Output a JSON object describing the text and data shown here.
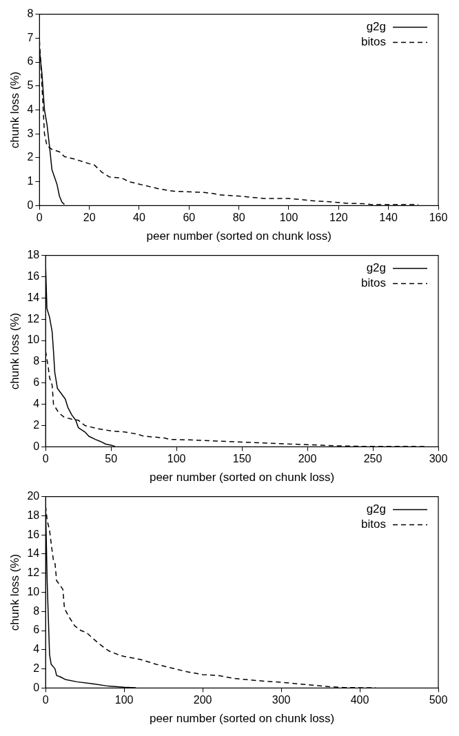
{
  "chart_data": [
    {
      "type": "line",
      "xlabel": "peer number (sorted on chunk loss)",
      "ylabel": "chunk loss (%)",
      "xlim": [
        0,
        160
      ],
      "xticks": [
        0,
        20,
        40,
        60,
        80,
        100,
        120,
        140,
        160
      ],
      "ylim": [
        0,
        8
      ],
      "yticks": [
        0,
        1,
        2,
        3,
        4,
        5,
        6,
        7,
        8
      ],
      "grid": false,
      "legend": "top right",
      "marker": "none",
      "series": [
        {
          "name": "g2g",
          "color": "#000000",
          "line_style": "solid",
          "x": [
            0,
            1,
            2,
            3,
            4,
            5,
            6,
            7,
            8,
            9,
            10
          ],
          "values": [
            6.5,
            5.5,
            4,
            3.4,
            2.5,
            1.5,
            1.2,
            0.9,
            0.4,
            0.15,
            0.05
          ]
        },
        {
          "name": "bitos",
          "color": "#000000",
          "line_style": "dashed",
          "x": [
            0,
            1,
            2,
            3,
            5,
            8,
            10,
            14,
            20,
            22,
            25,
            28,
            33,
            36,
            40,
            44,
            48,
            54,
            66,
            70,
            72,
            80,
            85,
            90,
            100,
            105,
            110,
            118,
            123,
            130,
            133,
            152
          ],
          "values": [
            6.9,
            5,
            3,
            2.5,
            2.35,
            2.25,
            2.05,
            1.95,
            1.75,
            1.7,
            1.4,
            1.2,
            1.15,
            1,
            0.9,
            0.8,
            0.7,
            0.6,
            0.55,
            0.5,
            0.45,
            0.4,
            0.35,
            0.3,
            0.3,
            0.25,
            0.2,
            0.15,
            0.1,
            0.08,
            0.05,
            0.05
          ]
        }
      ]
    },
    {
      "type": "line",
      "xlabel": "peer number (sorted on chunk loss)",
      "ylabel": "chunk loss (%)",
      "xlim": [
        0,
        300
      ],
      "xticks": [
        0,
        50,
        100,
        150,
        200,
        250,
        300
      ],
      "ylim": [
        0,
        18
      ],
      "yticks": [
        0,
        2,
        4,
        6,
        8,
        10,
        12,
        14,
        16,
        18
      ],
      "grid": false,
      "legend": "top right",
      "marker": "none",
      "series": [
        {
          "name": "g2g",
          "color": "#000000",
          "line_style": "solid",
          "x": [
            0,
            1,
            3,
            5,
            6,
            7,
            9,
            12,
            15,
            17,
            20,
            23,
            25,
            30,
            33,
            38,
            42,
            46,
            50,
            53
          ],
          "values": [
            17,
            13,
            12.2,
            10.8,
            9,
            7,
            5.5,
            5,
            4.5,
            3.7,
            3,
            2.5,
            1.8,
            1.4,
            1,
            0.7,
            0.5,
            0.25,
            0.15,
            0.05
          ]
        },
        {
          "name": "bitos",
          "color": "#000000",
          "line_style": "dashed",
          "x": [
            0,
            2,
            3,
            5,
            6,
            10,
            14,
            20,
            25,
            30,
            40,
            50,
            60,
            70,
            75,
            90,
            95,
            110,
            130,
            150,
            170,
            190,
            200,
            220,
            240,
            290
          ],
          "values": [
            9,
            7.5,
            6.5,
            5.8,
            4,
            3.2,
            2.8,
            2.6,
            2.5,
            2,
            1.7,
            1.5,
            1.4,
            1.2,
            1,
            0.85,
            0.7,
            0.65,
            0.55,
            0.45,
            0.35,
            0.25,
            0.2,
            0.1,
            0.05,
            0.03
          ]
        }
      ]
    },
    {
      "type": "line",
      "xlabel": "peer number (sorted on chunk loss)",
      "ylabel": "chunk loss (%)",
      "xlim": [
        0,
        500
      ],
      "xticks": [
        0,
        100,
        200,
        300,
        400,
        500
      ],
      "ylim": [
        0,
        20
      ],
      "yticks": [
        0,
        2,
        4,
        6,
        8,
        10,
        12,
        14,
        16,
        18,
        20
      ],
      "grid": false,
      "legend": "top right",
      "marker": "none",
      "series": [
        {
          "name": "g2g",
          "color": "#000000",
          "line_style": "solid",
          "x": [
            0,
            2,
            4,
            5,
            7,
            12,
            14,
            18,
            25,
            40,
            60,
            80,
            100,
            115
          ],
          "values": [
            19,
            11,
            6,
            3.5,
            2.5,
            2,
            1.3,
            1.2,
            0.9,
            0.65,
            0.45,
            0.2,
            0.08,
            0.03
          ]
        },
        {
          "name": "bitos",
          "color": "#000000",
          "line_style": "dashed",
          "x": [
            0,
            2,
            5,
            8,
            10,
            12,
            14,
            18,
            22,
            24,
            30,
            37,
            45,
            52,
            60,
            70,
            80,
            95,
            100,
            120,
            140,
            160,
            180,
            200,
            220,
            240,
            260,
            280,
            300,
            320,
            340,
            360,
            380,
            420
          ],
          "values": [
            19,
            17.5,
            16.5,
            14.5,
            13.3,
            13,
            11.2,
            10.8,
            10.3,
            8.3,
            7.4,
            6.5,
            6,
            5.8,
            5.2,
            4.5,
            3.9,
            3.4,
            3.3,
            3,
            2.5,
            2.1,
            1.7,
            1.4,
            1.3,
            1,
            0.85,
            0.7,
            0.6,
            0.45,
            0.3,
            0.15,
            0.05,
            0.02
          ]
        }
      ]
    }
  ]
}
